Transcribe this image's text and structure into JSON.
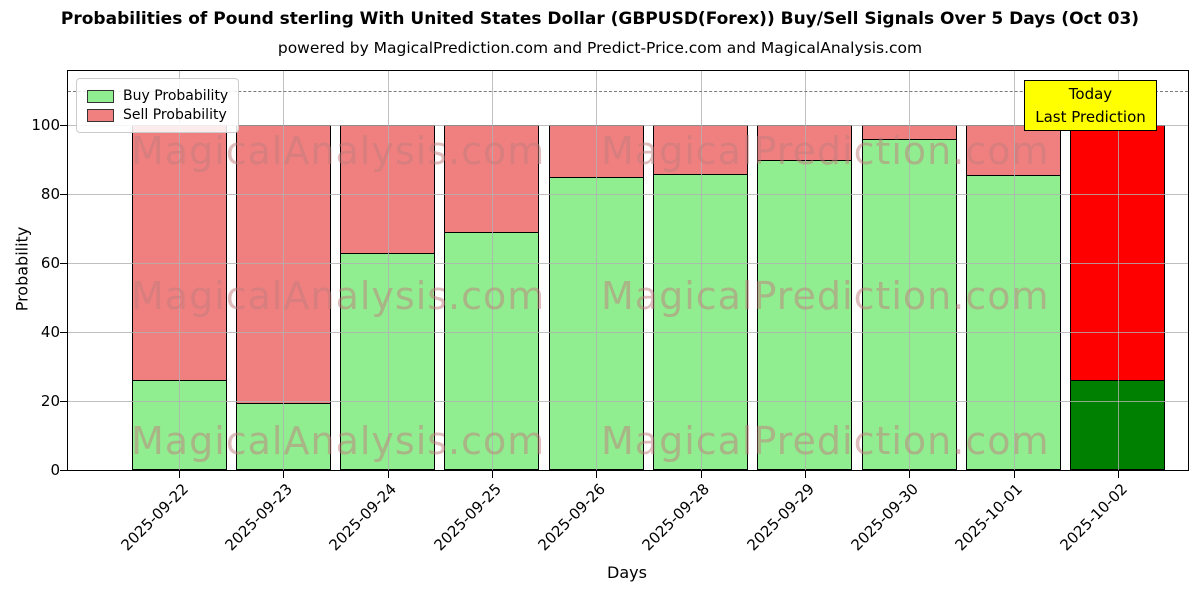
{
  "title": "Probabilities of Pound sterling With United States Dollar (GBPUSD(Forex)) Buy/Sell Signals Over 5 Days (Oct 03)",
  "subtitle": "powered by MagicalPrediction.com and Predict-Price.com and MagicalAnalysis.com",
  "annotation": {
    "line1": "Today",
    "line2": "Last Prediction",
    "bg_color": "#ffff00"
  },
  "watermarks": {
    "left": "MagicalAnalysis.com",
    "right": "MagicalPrediction.com"
  },
  "chart_data": {
    "type": "bar",
    "stacked": true,
    "title": "Probabilities of Pound sterling With United States Dollar (GBPUSD(Forex)) Buy/Sell Signals Over 5 Days (Oct 03)",
    "xlabel": "Days",
    "ylabel": "Probability",
    "ylim": [
      0,
      115.8
    ],
    "yticks": [
      0,
      20,
      40,
      60,
      80,
      100
    ],
    "dashed_line_y": 110,
    "grid": true,
    "legend_position": "upper left",
    "categories": [
      "2025-09-22",
      "2025-09-23",
      "2025-09-24",
      "2025-09-25",
      "2025-09-26",
      "2025-09-28",
      "2025-09-29",
      "2025-09-30",
      "2025-10-01",
      "2025-10-02"
    ],
    "series": [
      {
        "name": "Buy Probability",
        "values": [
          26,
          19.5,
          63,
          69,
          85,
          86,
          90,
          96,
          85.5,
          26
        ],
        "color": "#90ee90",
        "last_bar_color": "#008000"
      },
      {
        "name": "Sell Probability",
        "values": [
          74,
          80.5,
          37,
          31,
          15,
          14,
          10,
          4,
          14.5,
          74
        ],
        "color": "#f08080",
        "last_bar_color": "#ff0000"
      }
    ]
  }
}
